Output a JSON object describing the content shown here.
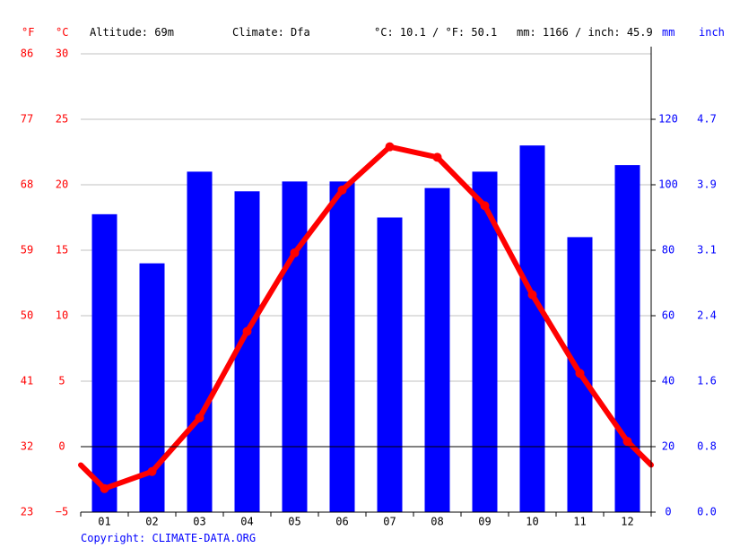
{
  "header": {
    "unit_f": "°F",
    "unit_c": "°C",
    "altitude": "Altitude: 69m",
    "climate": "Climate: Dfa",
    "avg_temp": "°C: 10.1 / °F: 50.1",
    "precip_total": "mm: 1166 / inch: 45.9",
    "unit_mm": "mm",
    "unit_inch": "inch"
  },
  "copyright": "Copyright: CLIMATE-DATA.ORG",
  "colors": {
    "temperature": "#ff0000",
    "precipitation": "#0000ff",
    "grid": "#c0c0c0",
    "zero_line": "#000000"
  },
  "chart_data": {
    "type": "bar",
    "categories": [
      "01",
      "02",
      "03",
      "04",
      "05",
      "06",
      "07",
      "08",
      "09",
      "10",
      "11",
      "12"
    ],
    "series": [
      {
        "type": "bar",
        "axis": "precipitation (mm)",
        "values": [
          91,
          76,
          104,
          98,
          101,
          101,
          90,
          99,
          104,
          112,
          84,
          106
        ]
      },
      {
        "type": "line",
        "axis": "temperature (°C)",
        "values": [
          -3.2,
          -1.9,
          2.2,
          8.8,
          14.8,
          19.6,
          22.9,
          22.1,
          18.4,
          11.6,
          5.6,
          0.4
        ]
      }
    ],
    "y_left_c": {
      "ticks": [
        30,
        25,
        20,
        15,
        10,
        5,
        0,
        -5
      ],
      "range": [
        -5,
        30
      ]
    },
    "y_left_f": {
      "ticks": [
        86,
        77,
        68,
        59,
        50,
        41,
        32,
        23
      ]
    },
    "y_right_mm": {
      "ticks": [
        120,
        100,
        80,
        60,
        40,
        20,
        0
      ],
      "range": [
        0,
        140
      ]
    },
    "y_right_inch": {
      "ticks": [
        "4.7",
        "3.9",
        "3.1",
        "2.4",
        "1.6",
        "0.8",
        "0.0"
      ]
    },
    "grid": true
  }
}
